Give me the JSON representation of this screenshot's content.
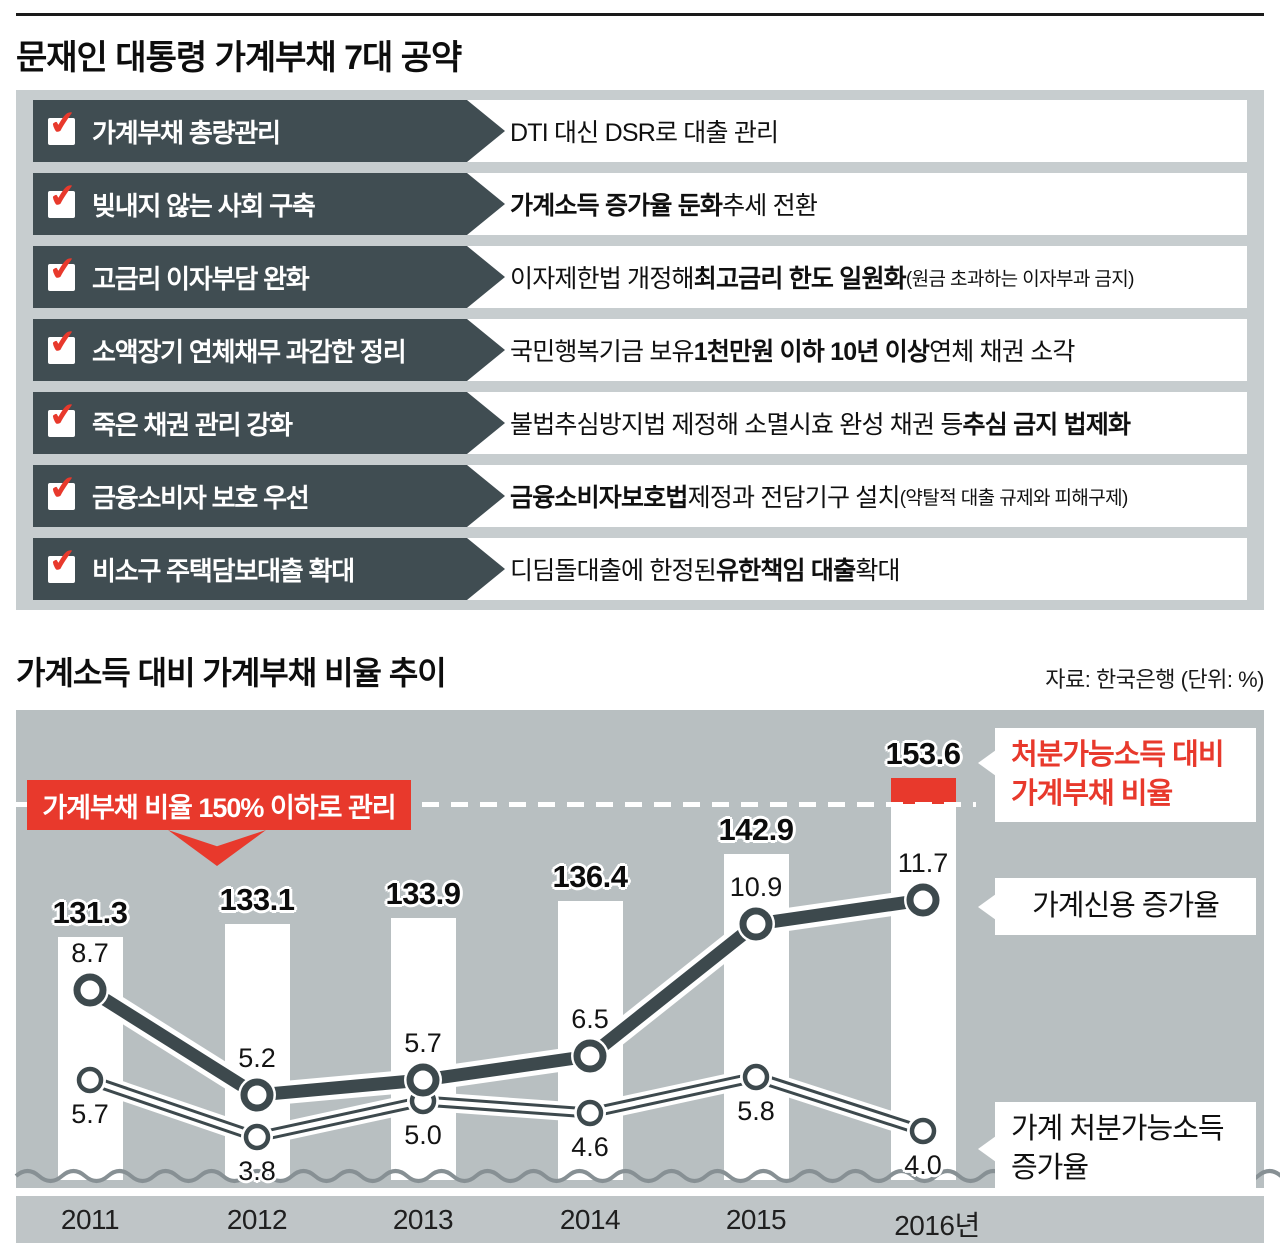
{
  "page": {
    "title": "문재인 대통령 가계부채 7대 공약",
    "chart_section_title": "가계소득 대비 가계부채 비율 추이",
    "chart_source": "자료: 한국은행  (단위: %)"
  },
  "colors": {
    "banner_dark": "#404d52",
    "board_gray": "#c7cdcf",
    "plot_gray": "#b8bfc1",
    "accent_red": "#e8392c",
    "line_dark": "#3d494d",
    "wave_gray": "#879094"
  },
  "pledges": [
    {
      "label": "가계부채 총량관리",
      "segments": [
        {
          "text": "DTI 대신 DSR로 대출 관리",
          "style": "r"
        }
      ]
    },
    {
      "label": "빚내지 않는 사회 구축",
      "segments": [
        {
          "text": "가계소득 증가율 둔화",
          "style": "b"
        },
        {
          "text": " 추세 전환",
          "style": "r"
        }
      ]
    },
    {
      "label": "고금리 이자부담 완화",
      "segments": [
        {
          "text": "이자제한법 개정해 ",
          "style": "r"
        },
        {
          "text": "최고금리 한도 일원화",
          "style": "b"
        },
        {
          "text": "(원금 초과하는 이자부과 금지)",
          "style": "p"
        }
      ]
    },
    {
      "label": "소액장기 연체채무 과감한 정리",
      "segments": [
        {
          "text": "국민행복기금 보유 ",
          "style": "r"
        },
        {
          "text": "1천만원 이하 10년 이상",
          "style": "b"
        },
        {
          "text": " 연체 채권 소각",
          "style": "r"
        }
      ]
    },
    {
      "label": "죽은 채권 관리 강화",
      "segments": [
        {
          "text": "불법추심방지법 제정해 소멸시효 완성 채권 등 ",
          "style": "r"
        },
        {
          "text": "추심 금지 법제화",
          "style": "b"
        }
      ]
    },
    {
      "label": "금융소비자 보호 우선",
      "segments": [
        {
          "text": "금융소비자보호법",
          "style": "b"
        },
        {
          "text": " 제정과 전담기구 설치",
          "style": "r"
        },
        {
          "text": "(약탈적 대출 규제와 피해구제)",
          "style": "p"
        }
      ]
    },
    {
      "label": "비소구 주택담보대출 확대",
      "segments": [
        {
          "text": "디딤돌대출에 한정된 ",
          "style": "r"
        },
        {
          "text": "유한책임 대출",
          "style": "b"
        },
        {
          "text": " 확대",
          "style": "r"
        }
      ]
    }
  ],
  "chart_data": {
    "type": "bar",
    "title": "가계소득 대비 가계부채 비율 추이",
    "unit": "%",
    "source": "자료: 한국은행  (단위: %)",
    "categories": [
      "2011",
      "2012",
      "2013",
      "2014",
      "2015",
      "2016년"
    ],
    "bar_series": {
      "name": "처분가능소득 대비 가계부채 비율",
      "label_lines": [
        "처분가능소득 대비",
        "가계부채 비율"
      ],
      "values": [
        131.3,
        133.1,
        133.9,
        136.4,
        142.9,
        153.6
      ]
    },
    "line_series": [
      {
        "id": "credit",
        "name": "가계신용 증가율",
        "label_lines": [
          "가계신용 증가율"
        ],
        "values": [
          8.7,
          5.2,
          5.7,
          6.5,
          10.9,
          11.7
        ]
      },
      {
        "id": "income",
        "name": "가계 처분가능소득 증가율",
        "label_lines": [
          "가계 처분가능소득",
          "증가율"
        ],
        "values": [
          5.7,
          3.8,
          5.0,
          4.6,
          5.8,
          4.0
        ]
      }
    ],
    "threshold": {
      "value": 150,
      "callout": "가계부채 비율 150% 이하로 관리"
    }
  }
}
